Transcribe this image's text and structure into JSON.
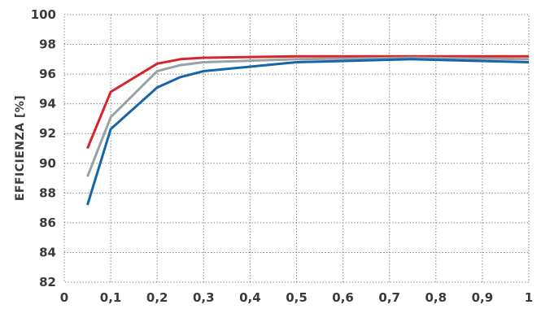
{
  "chart_data": {
    "type": "line",
    "title": "",
    "xlabel": "",
    "ylabel": "EFFICIENZA [%]",
    "xlim": [
      0,
      1
    ],
    "ylim": [
      82,
      100
    ],
    "x_ticks": [
      "0",
      "0,1",
      "0,2",
      "0,3",
      "0,4",
      "0,5",
      "0,6",
      "0,7",
      "0,8",
      "0,9",
      "1"
    ],
    "x_tick_values": [
      0,
      0.1,
      0.2,
      0.3,
      0.4,
      0.5,
      0.6,
      0.7,
      0.8,
      0.9,
      1
    ],
    "y_ticks": [
      "82",
      "84",
      "86",
      "88",
      "90",
      "92",
      "94",
      "96",
      "98",
      "100"
    ],
    "y_tick_values": [
      82,
      84,
      86,
      88,
      90,
      92,
      94,
      96,
      98,
      100
    ],
    "grid": "dotted, both axes",
    "legend": "none",
    "series": [
      {
        "color": "#d6252b",
        "points": [
          [
            0.05,
            91.0
          ],
          [
            0.1,
            94.8
          ],
          [
            0.2,
            96.7
          ],
          [
            0.25,
            97.0
          ],
          [
            0.3,
            97.1
          ],
          [
            0.5,
            97.2
          ],
          [
            0.75,
            97.2
          ],
          [
            1.0,
            97.2
          ]
        ]
      },
      {
        "color": "#9aa2a8",
        "points": [
          [
            0.05,
            89.1
          ],
          [
            0.1,
            93.1
          ],
          [
            0.2,
            96.2
          ],
          [
            0.25,
            96.6
          ],
          [
            0.3,
            96.8
          ],
          [
            0.5,
            97.0
          ],
          [
            0.75,
            97.1
          ],
          [
            1.0,
            97.0
          ]
        ]
      },
      {
        "color": "#1565a8",
        "points": [
          [
            0.05,
            87.2
          ],
          [
            0.1,
            92.3
          ],
          [
            0.2,
            95.1
          ],
          [
            0.25,
            95.8
          ],
          [
            0.3,
            96.2
          ],
          [
            0.5,
            96.8
          ],
          [
            0.75,
            97.0
          ],
          [
            1.0,
            96.8
          ]
        ]
      }
    ]
  }
}
